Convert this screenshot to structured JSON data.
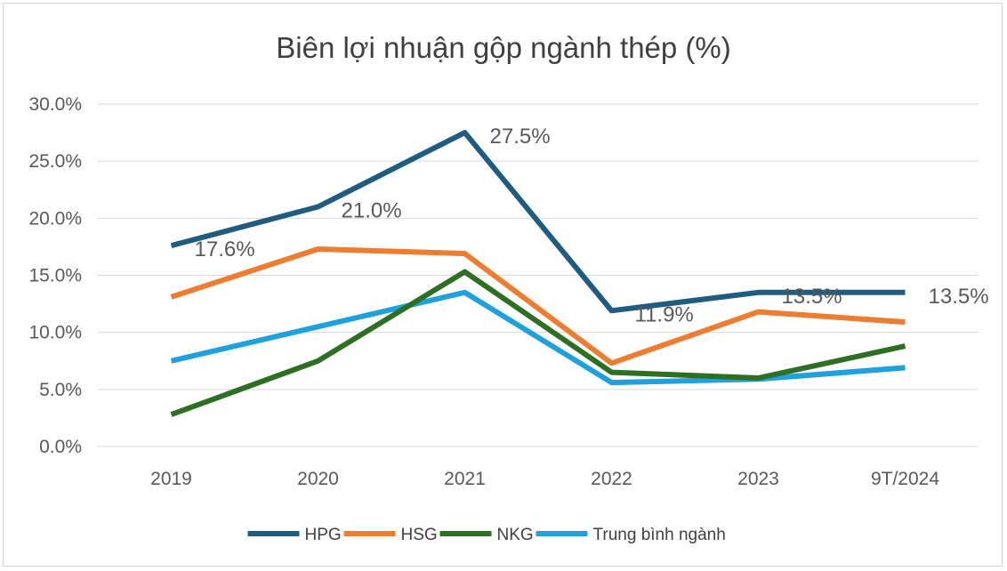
{
  "chart_data": {
    "type": "line",
    "title": "Biên lợi nhuận gộp ngành thép (%)",
    "categories": [
      "2019",
      "2020",
      "2021",
      "2022",
      "2023",
      "9T/2024"
    ],
    "ylim": [
      0,
      30
    ],
    "yticks": [
      "0.0%",
      "5.0%",
      "10.0%",
      "15.0%",
      "20.0%",
      "25.0%",
      "30.0%"
    ],
    "grid": true,
    "legend": "bottom",
    "series": [
      {
        "name": "HPG",
        "color": "#1f5c80",
        "values": [
          17.6,
          21.0,
          27.5,
          11.9,
          13.5,
          13.5
        ]
      },
      {
        "name": "HSG",
        "color": "#ed7d31",
        "values": [
          13.1,
          17.3,
          16.9,
          7.3,
          11.8,
          10.9
        ]
      },
      {
        "name": "NKG",
        "color": "#2e7023",
        "values": [
          2.8,
          7.5,
          15.3,
          6.5,
          6.0,
          8.8
        ]
      },
      {
        "name": "Trung bình ngành",
        "color": "#1ea1dc",
        "values": [
          7.5,
          10.5,
          13.5,
          5.6,
          5.9,
          6.9
        ]
      }
    ],
    "data_labels": [
      {
        "series": "HPG",
        "index": 0,
        "text": "17.6%"
      },
      {
        "series": "HPG",
        "index": 1,
        "text": "21.0%"
      },
      {
        "series": "HPG",
        "index": 2,
        "text": "27.5%"
      },
      {
        "series": "HPG",
        "index": 3,
        "text": "11.9%"
      },
      {
        "series": "HPG",
        "index": 4,
        "text": "13.5%"
      },
      {
        "series": "HPG",
        "index": 5,
        "text": "13.5%"
      }
    ]
  }
}
